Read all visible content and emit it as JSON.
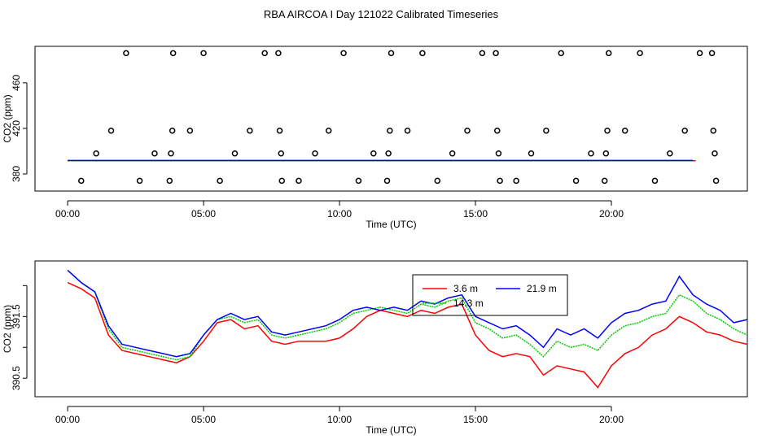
{
  "title": "RBA AIRCOA I  Day 121022  Calibrated Timeseries",
  "chart_data": [
    {
      "type": "scatter",
      "id": "top",
      "xlabel": "Time (UTC)",
      "ylabel": "CO2 (ppm)",
      "xlim": [
        -1.2,
        25.0
      ],
      "ylim": [
        365,
        492
      ],
      "xticks": [
        0,
        5,
        10,
        15,
        20
      ],
      "xtick_labels": [
        "00:00",
        "05:00",
        "10:00",
        "15:00",
        "20:00"
      ],
      "yticks": [
        380,
        420,
        460
      ],
      "ytick_labels": [
        "380",
        "420",
        "460"
      ],
      "points": {
        "x": [
          0.5,
          1.05,
          1.6,
          2.15,
          2.65,
          3.2,
          3.75,
          3.8,
          3.85,
          3.88,
          4.5,
          5.0,
          5.6,
          6.15,
          6.7,
          7.25,
          7.75,
          7.8,
          7.85,
          7.88,
          8.5,
          9.1,
          9.6,
          10.15,
          10.7,
          11.25,
          11.75,
          11.8,
          11.85,
          11.9,
          12.5,
          13.05,
          13.6,
          14.15,
          14.7,
          15.25,
          15.75,
          15.8,
          15.85,
          15.9,
          16.5,
          17.05,
          17.6,
          18.15,
          18.7,
          19.25,
          19.75,
          19.8,
          19.85,
          19.9,
          20.5,
          21.05,
          21.6,
          22.15,
          22.7,
          23.25,
          23.7,
          23.75,
          23.8,
          23.85
        ],
        "y": [
          374,
          398,
          418,
          486,
          374,
          398,
          374,
          398,
          418,
          486,
          418,
          486,
          374,
          398,
          418,
          486,
          486,
          418,
          398,
          374,
          374,
          398,
          418,
          486,
          374,
          398,
          374,
          398,
          418,
          486,
          418,
          486,
          374,
          398,
          418,
          486,
          486,
          418,
          398,
          374,
          374,
          398,
          418,
          486,
          374,
          398,
          374,
          398,
          418,
          486,
          418,
          486,
          374,
          398,
          418,
          486,
          486,
          418,
          398,
          374
        ]
      },
      "series": [
        {
          "name": "3.6 m",
          "color": "#ff0000",
          "t0": 0.0,
          "dt": 0.1,
          "values": [
            391.6,
            391.6,
            391.6,
            391.6,
            391.6,
            391.6,
            391.6,
            391.6,
            391.6,
            391.6,
            391.6,
            391.6,
            391.6,
            391.6,
            391.6,
            391.6,
            391.6,
            391.6,
            391.6,
            391.6,
            391.6,
            391.6,
            391.6,
            391.6,
            391.6,
            391.6,
            391.6,
            391.6,
            391.6,
            391.6,
            391.6,
            391.6,
            391.6,
            391.6,
            391.6,
            391.6,
            391.6,
            391.6,
            391.6,
            391.6,
            391.6,
            391.6,
            391.6,
            391.6,
            391.6,
            391.6,
            391.6,
            391.6,
            391.6,
            391.6,
            391.6,
            391.6,
            391.6,
            391.6,
            391.6,
            391.6,
            391.6,
            391.6,
            391.6,
            391.6,
            391.6,
            391.6,
            391.6,
            391.6,
            391.6,
            391.6,
            391.6,
            391.6,
            391.6,
            391.6,
            391.6,
            391.6,
            391.6,
            391.6,
            391.6,
            391.6,
            391.6,
            391.6,
            391.6,
            391.6,
            391.6,
            391.6,
            391.6,
            391.6,
            391.6,
            391.6,
            391.6,
            391.6,
            391.6,
            391.6,
            391.6,
            391.6,
            391.6,
            391.6,
            391.6,
            391.6,
            391.6,
            391.6,
            391.6,
            391.6,
            391.6,
            391.6,
            391.6,
            391.6,
            391.6,
            391.6,
            391.6,
            391.6,
            391.6,
            391.6,
            391.6,
            391.6,
            391.6,
            391.6,
            391.6,
            391.6,
            391.6,
            391.6,
            391.6,
            391.6,
            391.6,
            391.6,
            391.6,
            391.6,
            391.6,
            391.6,
            391.6,
            391.6,
            391.6,
            391.6,
            391.6,
            391.6,
            391.6,
            391.6,
            391.6,
            391.6,
            391.6,
            391.6,
            391.6,
            391.6,
            391.6,
            391.6,
            391.6,
            391.6,
            391.6,
            391.6,
            391.6,
            391.6,
            391.6,
            391.6,
            391.6,
            391.6,
            391.6,
            391.6,
            391.6,
            391.6,
            391.6,
            391.6,
            391.6,
            391.6,
            391.6,
            391.6,
            391.6,
            391.6,
            391.6,
            391.6,
            391.6,
            391.6,
            391.6,
            391.6,
            391.6,
            391.6,
            391.6,
            391.6,
            391.6,
            391.6,
            391.6,
            391.6,
            391.6,
            391.6,
            391.6,
            391.6,
            391.6,
            391.6,
            391.6,
            391.6,
            391.6,
            391.6,
            391.6,
            391.6,
            391.6,
            391.6,
            391.6,
            391.6,
            391.6,
            391.6,
            391.6,
            391.6,
            391.6,
            391.6,
            391.6,
            391.6,
            391.6,
            391.6,
            391.6,
            391.6,
            391.6,
            391.6,
            391.6,
            391.6,
            391.6,
            391.6,
            391.6,
            391.6,
            391.6,
            391.6,
            391.6,
            391.6,
            391.6,
            391.6,
            391.6,
            391.6,
            391.6,
            391.6,
            391.6,
            391.6,
            391.6,
            391.6,
            391.6,
            391.6,
            391.6,
            391.6
          ]
        },
        {
          "name": "14.3 m",
          "color": "#00cc00",
          "t0": 0.0,
          "dt": 1.0,
          "values": [
            391.7,
            391.7,
            391.7,
            391.7,
            391.7,
            391.7,
            391.7,
            391.7,
            391.7,
            391.7,
            391.7,
            391.7,
            391.7,
            391.7,
            391.7,
            391.7,
            391.7,
            391.7,
            391.7,
            391.7,
            391.7,
            391.7,
            391.7,
            391.7
          ]
        },
        {
          "name": "21.9 m",
          "color": "#0000ff",
          "t0": 0.0,
          "dt": 1.0,
          "values": [
            391.8,
            391.8,
            391.8,
            391.8,
            391.8,
            391.8,
            391.8,
            391.8,
            391.8,
            391.8,
            391.8,
            391.8,
            391.8,
            391.8,
            391.8,
            391.8,
            391.8,
            391.8,
            391.8,
            391.8,
            391.8,
            391.8,
            391.8,
            391.8
          ]
        }
      ]
    },
    {
      "type": "line",
      "id": "bottom",
      "xlabel": "Time (UTC)",
      "ylabel": "CO2 (ppm)",
      "xlim": [
        -1.2,
        25.0
      ],
      "ylim": [
        390.2,
        392.4
      ],
      "xticks": [
        0,
        5,
        10,
        15,
        20
      ],
      "xtick_labels": [
        "00:00",
        "05:00",
        "10:00",
        "15:00",
        "20:00"
      ],
      "yticks": [
        390.5,
        391.0,
        391.5,
        392.0
      ],
      "ytick_labels": [
        "390.5",
        "",
        "391.5",
        ""
      ],
      "legend": {
        "position": "top-center",
        "entries": [
          "3.6 m",
          "14.3 m",
          "21.9 m"
        ]
      },
      "series": [
        {
          "name": "3.6 m",
          "color": "#ff0000",
          "dash": "",
          "t0": 0.0,
          "dt": 0.5,
          "values": [
            392.05,
            391.95,
            391.8,
            391.2,
            390.95,
            390.9,
            390.85,
            390.8,
            390.75,
            390.85,
            391.1,
            391.4,
            391.45,
            391.3,
            391.35,
            391.1,
            391.05,
            391.1,
            391.1,
            391.1,
            391.15,
            391.3,
            391.5,
            391.6,
            391.55,
            391.5,
            391.6,
            391.55,
            391.65,
            391.7,
            391.2,
            390.95,
            390.85,
            390.9,
            390.85,
            390.55,
            390.7,
            390.65,
            390.6,
            390.35,
            390.7,
            390.9,
            391.0,
            391.2,
            391.3,
            391.5,
            391.4,
            391.25,
            391.2,
            391.1,
            391.05
          ]
        },
        {
          "name": "14.3 m",
          "color": "#00cc00",
          "dash": "2,1",
          "t0": 0.0,
          "dt": 0.5,
          "values": [
            392.25,
            392.05,
            391.9,
            391.3,
            391.0,
            390.95,
            390.9,
            390.85,
            390.8,
            390.85,
            391.2,
            391.45,
            391.5,
            391.4,
            391.45,
            391.2,
            391.15,
            391.2,
            391.25,
            391.3,
            391.4,
            391.55,
            391.6,
            391.65,
            391.6,
            391.55,
            391.7,
            391.65,
            391.75,
            391.8,
            391.4,
            391.3,
            391.15,
            391.2,
            391.05,
            390.85,
            391.1,
            391.0,
            391.05,
            390.95,
            391.2,
            391.35,
            391.4,
            391.5,
            391.55,
            391.85,
            391.75,
            391.55,
            391.45,
            391.3,
            391.2
          ]
        },
        {
          "name": "21.9 m",
          "color": "#0000ff",
          "dash": "",
          "t0": 0.0,
          "dt": 0.5,
          "values": [
            392.25,
            392.05,
            391.9,
            391.35,
            391.05,
            391.0,
            390.95,
            390.9,
            390.85,
            390.9,
            391.2,
            391.45,
            391.55,
            391.45,
            391.5,
            391.25,
            391.2,
            391.25,
            391.3,
            391.35,
            391.45,
            391.6,
            391.65,
            391.6,
            391.65,
            391.6,
            391.75,
            391.7,
            391.8,
            391.85,
            391.5,
            391.4,
            391.3,
            391.35,
            391.2,
            391.0,
            391.3,
            391.2,
            391.3,
            391.15,
            391.4,
            391.55,
            391.6,
            391.7,
            391.75,
            392.15,
            391.85,
            391.7,
            391.6,
            391.4,
            391.45
          ]
        }
      ]
    }
  ]
}
